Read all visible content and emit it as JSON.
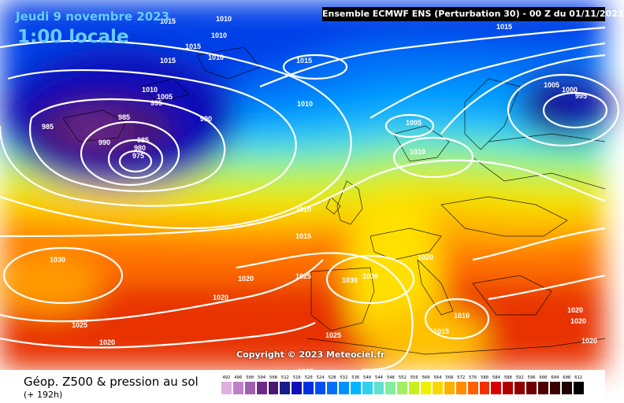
{
  "header": {
    "date_text": "Jeudi 9 novembre 2023",
    "local_time_text": "1:00 locale",
    "model_run": "Ensemble ECMWF ENS  (Perturbation 30)  -  00 Z du 01/11/2023"
  },
  "footer": {
    "title": "Géop. Z500 & pression au sol",
    "lead_time": "(+ 192h)",
    "copyright": "Copyright © 2023 Meteociel.fr"
  },
  "colorscale": {
    "labels": [
      "492",
      "496",
      "500",
      "504",
      "508",
      "512",
      "516",
      "520",
      "524",
      "528",
      "532",
      "536",
      "540",
      "544",
      "548",
      "552",
      "556",
      "560",
      "564",
      "568",
      "572",
      "576",
      "580",
      "584",
      "588",
      "592",
      "596",
      "600",
      "604",
      "608",
      "612"
    ],
    "colors": [
      "#e0b0e0",
      "#c080c8",
      "#a060b0",
      "#6e2a8a",
      "#4a1870",
      "#1a1a8c",
      "#1010b8",
      "#0030e0",
      "#0050f0",
      "#0070f8",
      "#0090ff",
      "#00b4ff",
      "#30d0f0",
      "#60e0d0",
      "#80f0a0",
      "#a0f060",
      "#c8f020",
      "#f0f000",
      "#f8d800",
      "#ffb000",
      "#ff8c00",
      "#ff6000",
      "#f03000",
      "#d80000",
      "#b00000",
      "#900000",
      "#700000",
      "#500000",
      "#380000",
      "#200000",
      "#000000"
    ]
  },
  "isobars": [
    {
      "value": "985",
      "kind": "low"
    },
    {
      "value": "980",
      "kind": "low"
    },
    {
      "value": "975",
      "kind": "low"
    },
    {
      "value": "990",
      "kind": "low"
    },
    {
      "value": "995",
      "kind": "low"
    },
    {
      "value": "1000",
      "kind": "low"
    },
    {
      "value": "1005",
      "kind": "low"
    },
    {
      "value": "1010",
      "kind": "neutral"
    },
    {
      "value": "1015",
      "kind": "neutral"
    },
    {
      "value": "1020",
      "kind": "high"
    },
    {
      "value": "1025",
      "kind": "high"
    },
    {
      "value": "1030",
      "kind": "high"
    }
  ]
}
